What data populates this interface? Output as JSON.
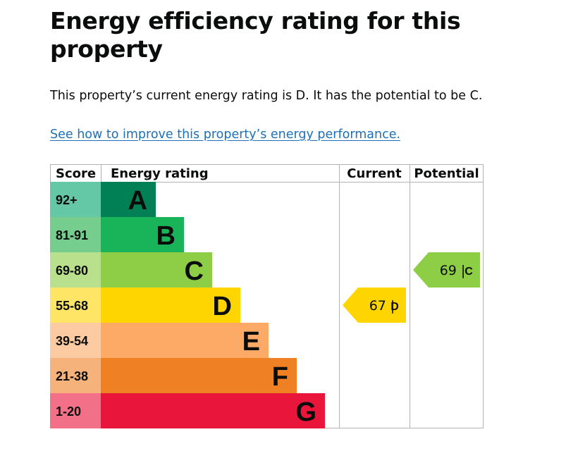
{
  "heading": "Energy efficiency rating for this property",
  "summary": "This property’s current energy rating is D. It has the potential to be C.",
  "link_text": "See how to improve this property’s energy performance.",
  "chart_data": {
    "type": "table",
    "columns": [
      "Score",
      "Energy rating",
      "Current",
      "Potential"
    ],
    "bands": [
      {
        "band": "A",
        "score": "92+",
        "color": "#008054",
        "score_bg": "#64c7a5"
      },
      {
        "band": "B",
        "score": "81-91",
        "color": "#19b459",
        "score_bg": "#75cd8e"
      },
      {
        "band": "C",
        "score": "69-80",
        "color": "#8dce46",
        "score_bg": "#b9e08c"
      },
      {
        "band": "D",
        "score": "55-68",
        "color": "#ffd500",
        "score_bg": "#ffe566"
      },
      {
        "band": "E",
        "score": "39-54",
        "color": "#fcaa65",
        "score_bg": "#fdcba2"
      },
      {
        "band": "F",
        "score": "21-38",
        "color": "#ef8023",
        "score_bg": "#f5b27a"
      },
      {
        "band": "G",
        "score": "1-20",
        "color": "#e9153b",
        "score_bg": "#f27189"
      }
    ],
    "current": {
      "value": 67,
      "band": "D",
      "label": "67 |",
      "color": "#ffd500"
    },
    "potential": {
      "value": 69,
      "band": "C",
      "label": "69 |",
      "color": "#8dce46"
    }
  }
}
